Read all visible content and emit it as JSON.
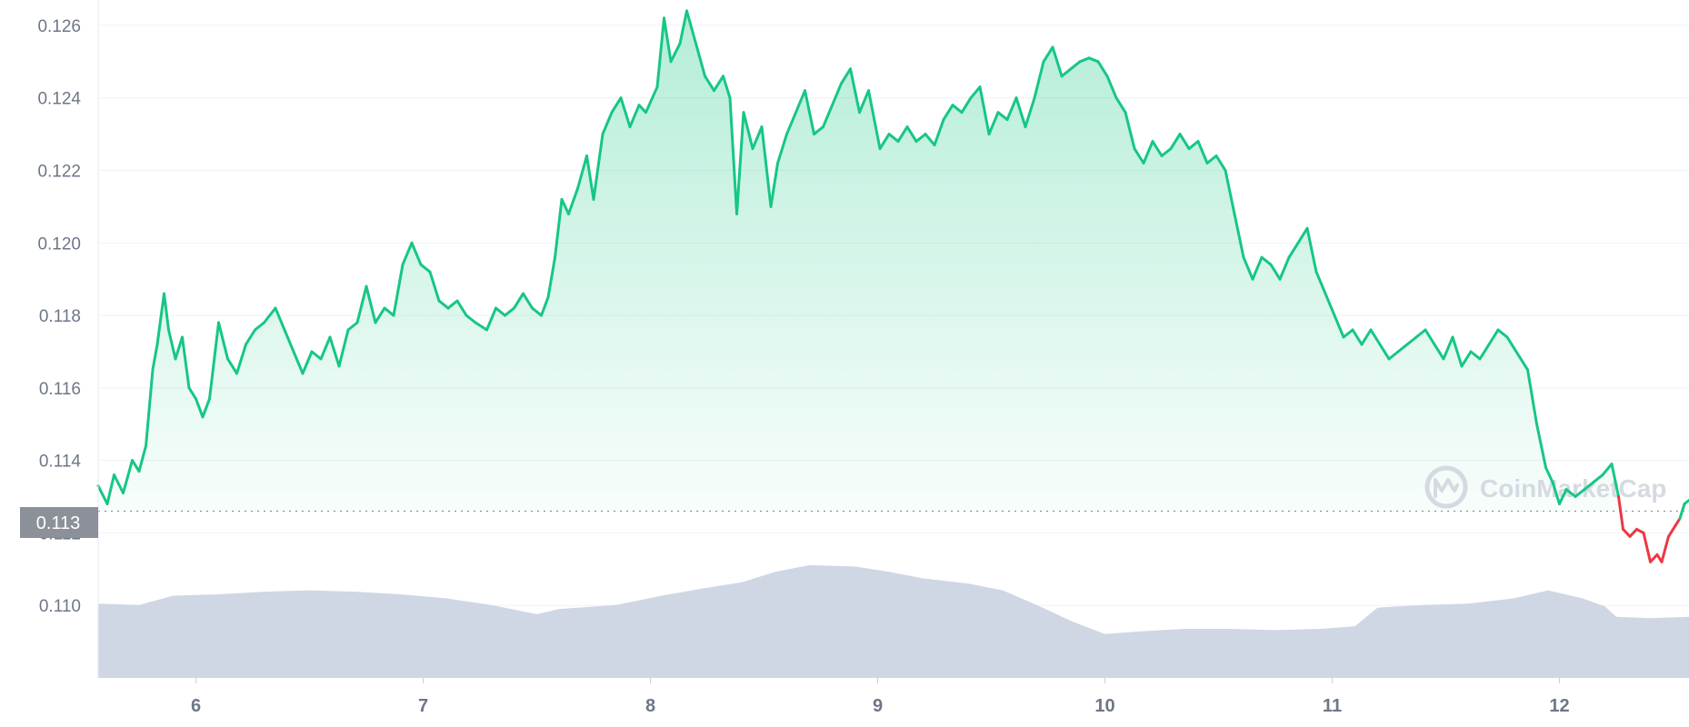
{
  "chart_data": {
    "type": "line",
    "title": "",
    "xlabel": "",
    "ylabel": "",
    "x_ticks": [
      "6",
      "7",
      "8",
      "9",
      "10",
      "11",
      "12"
    ],
    "y_ticks": [
      "0.126",
      "0.124",
      "0.122",
      "0.120",
      "0.118",
      "0.116",
      "0.114",
      "0.112",
      "0.110"
    ],
    "xlim": [
      5.57,
      12.57
    ],
    "ylim": [
      0.108,
      0.1267
    ],
    "grid": true,
    "reference_value": 0.1126,
    "current_label": "0.113",
    "watermark": "CoinMarketCap",
    "colors": {
      "up_line": "#16c784",
      "up_fill": "#16c784",
      "down_line": "#ea3943",
      "volume": "#cfd6e4",
      "label_bg": "#8c9199",
      "grid": "#eff2f5"
    },
    "series": [
      {
        "values": [
          [
            5.57,
            0.1133
          ],
          [
            5.61,
            0.1128
          ],
          [
            5.64,
            0.1136
          ],
          [
            5.68,
            0.1131
          ],
          [
            5.72,
            0.114
          ],
          [
            5.75,
            0.1137
          ],
          [
            5.78,
            0.1144
          ],
          [
            5.81,
            0.1165
          ],
          [
            5.83,
            0.1172
          ],
          [
            5.86,
            0.1186
          ],
          [
            5.88,
            0.1176
          ],
          [
            5.91,
            0.1168
          ],
          [
            5.94,
            0.1174
          ],
          [
            5.97,
            0.116
          ],
          [
            6.0,
            0.1157
          ],
          [
            6.03,
            0.1152
          ],
          [
            6.06,
            0.1157
          ],
          [
            6.1,
            0.1178
          ],
          [
            6.14,
            0.1168
          ],
          [
            6.18,
            0.1164
          ],
          [
            6.22,
            0.1172
          ],
          [
            6.26,
            0.1176
          ],
          [
            6.3,
            0.1178
          ],
          [
            6.35,
            0.1182
          ],
          [
            6.39,
            0.1176
          ],
          [
            6.43,
            0.117
          ],
          [
            6.47,
            0.1164
          ],
          [
            6.51,
            0.117
          ],
          [
            6.55,
            0.1168
          ],
          [
            6.59,
            0.1174
          ],
          [
            6.63,
            0.1166
          ],
          [
            6.67,
            0.1176
          ],
          [
            6.71,
            0.1178
          ],
          [
            6.75,
            0.1188
          ],
          [
            6.79,
            0.1178
          ],
          [
            6.83,
            0.1182
          ],
          [
            6.87,
            0.118
          ],
          [
            6.91,
            0.1194
          ],
          [
            6.95,
            0.12
          ],
          [
            6.99,
            0.1194
          ],
          [
            7.03,
            0.1192
          ],
          [
            7.07,
            0.1184
          ],
          [
            7.11,
            0.1182
          ],
          [
            7.15,
            0.1184
          ],
          [
            7.19,
            0.118
          ],
          [
            7.23,
            0.1178
          ],
          [
            7.28,
            0.1176
          ],
          [
            7.32,
            0.1182
          ],
          [
            7.36,
            0.118
          ],
          [
            7.4,
            0.1182
          ],
          [
            7.44,
            0.1186
          ],
          [
            7.48,
            0.1182
          ],
          [
            7.52,
            0.118
          ],
          [
            7.55,
            0.1185
          ],
          [
            7.58,
            0.1196
          ],
          [
            7.61,
            0.1212
          ],
          [
            7.64,
            0.1208
          ],
          [
            7.68,
            0.1215
          ],
          [
            7.72,
            0.1224
          ],
          [
            7.75,
            0.1212
          ],
          [
            7.79,
            0.123
          ],
          [
            7.83,
            0.1236
          ],
          [
            7.87,
            0.124
          ],
          [
            7.91,
            0.1232
          ],
          [
            7.95,
            0.1238
          ],
          [
            7.98,
            0.1236
          ],
          [
            8.03,
            0.1243
          ],
          [
            8.06,
            0.1262
          ],
          [
            8.09,
            0.125
          ],
          [
            8.13,
            0.1255
          ],
          [
            8.16,
            0.1264
          ],
          [
            8.2,
            0.1255
          ],
          [
            8.24,
            0.1246
          ],
          [
            8.28,
            0.1242
          ],
          [
            8.32,
            0.1246
          ],
          [
            8.35,
            0.124
          ],
          [
            8.38,
            0.1208
          ],
          [
            8.41,
            0.1236
          ],
          [
            8.45,
            0.1226
          ],
          [
            8.49,
            0.1232
          ],
          [
            8.53,
            0.121
          ],
          [
            8.56,
            0.1222
          ],
          [
            8.6,
            0.123
          ],
          [
            8.64,
            0.1236
          ],
          [
            8.68,
            0.1242
          ],
          [
            8.72,
            0.123
          ],
          [
            8.76,
            0.1232
          ],
          [
            8.8,
            0.1238
          ],
          [
            8.84,
            0.1244
          ],
          [
            8.88,
            0.1248
          ],
          [
            8.92,
            0.1236
          ],
          [
            8.96,
            0.1242
          ],
          [
            9.01,
            0.1226
          ],
          [
            9.05,
            0.123
          ],
          [
            9.09,
            0.1228
          ],
          [
            9.13,
            0.1232
          ],
          [
            9.17,
            0.1228
          ],
          [
            9.21,
            0.123
          ],
          [
            9.25,
            0.1227
          ],
          [
            9.29,
            0.1234
          ],
          [
            9.33,
            0.1238
          ],
          [
            9.37,
            0.1236
          ],
          [
            9.41,
            0.124
          ],
          [
            9.45,
            0.1243
          ],
          [
            9.49,
            0.123
          ],
          [
            9.53,
            0.1236
          ],
          [
            9.57,
            0.1234
          ],
          [
            9.61,
            0.124
          ],
          [
            9.65,
            0.1232
          ],
          [
            9.69,
            0.124
          ],
          [
            9.73,
            0.125
          ],
          [
            9.77,
            0.1254
          ],
          [
            9.81,
            0.1246
          ],
          [
            9.85,
            0.1248
          ],
          [
            9.89,
            0.125
          ],
          [
            9.93,
            0.1251
          ],
          [
            9.97,
            0.125
          ],
          [
            10.01,
            0.1246
          ],
          [
            10.05,
            0.124
          ],
          [
            10.09,
            0.1236
          ],
          [
            10.13,
            0.1226
          ],
          [
            10.17,
            0.1222
          ],
          [
            10.21,
            0.1228
          ],
          [
            10.25,
            0.1224
          ],
          [
            10.29,
            0.1226
          ],
          [
            10.33,
            0.123
          ],
          [
            10.37,
            0.1226
          ],
          [
            10.41,
            0.1228
          ],
          [
            10.45,
            0.1222
          ],
          [
            10.49,
            0.1224
          ],
          [
            10.53,
            0.122
          ],
          [
            10.57,
            0.1208
          ],
          [
            10.61,
            0.1196
          ],
          [
            10.65,
            0.119
          ],
          [
            10.69,
            0.1196
          ],
          [
            10.73,
            0.1194
          ],
          [
            10.77,
            0.119
          ],
          [
            10.81,
            0.1196
          ],
          [
            10.85,
            0.12
          ],
          [
            10.89,
            0.1204
          ],
          [
            10.93,
            0.1192
          ],
          [
            10.97,
            0.1186
          ],
          [
            11.01,
            0.118
          ],
          [
            11.05,
            0.1174
          ],
          [
            11.09,
            0.1176
          ],
          [
            11.13,
            0.1172
          ],
          [
            11.17,
            0.1176
          ],
          [
            11.21,
            0.1172
          ],
          [
            11.25,
            0.1168
          ],
          [
            11.29,
            0.117
          ],
          [
            11.33,
            0.1172
          ],
          [
            11.37,
            0.1174
          ],
          [
            11.41,
            0.1176
          ],
          [
            11.45,
            0.1172
          ],
          [
            11.49,
            0.1168
          ],
          [
            11.53,
            0.1174
          ],
          [
            11.57,
            0.1166
          ],
          [
            11.61,
            0.117
          ],
          [
            11.65,
            0.1168
          ],
          [
            11.69,
            0.1172
          ],
          [
            11.73,
            0.1176
          ],
          [
            11.77,
            0.1174
          ],
          [
            11.81,
            0.117
          ],
          [
            11.86,
            0.1165
          ],
          [
            11.9,
            0.115
          ],
          [
            11.94,
            0.1138
          ],
          [
            11.97,
            0.1134
          ],
          [
            12.0,
            0.1128
          ],
          [
            12.03,
            0.1132
          ],
          [
            12.07,
            0.113
          ],
          [
            12.11,
            0.1132
          ],
          [
            12.15,
            0.1134
          ],
          [
            12.19,
            0.1136
          ],
          [
            12.23,
            0.1139
          ],
          [
            12.26,
            0.113
          ],
          [
            12.28,
            0.1121
          ],
          [
            12.31,
            0.1119
          ],
          [
            12.34,
            0.1121
          ],
          [
            12.37,
            0.112
          ],
          [
            12.4,
            0.1112
          ],
          [
            12.43,
            0.1114
          ],
          [
            12.45,
            0.1112
          ],
          [
            12.48,
            0.1119
          ],
          [
            12.51,
            0.1122
          ],
          [
            12.53,
            0.1124
          ],
          [
            12.55,
            0.1128
          ],
          [
            12.57,
            0.1129
          ]
        ]
      }
    ],
    "volume": {
      "values": [
        [
          5.57,
          0.56
        ],
        [
          5.75,
          0.55
        ],
        [
          5.9,
          0.62
        ],
        [
          6.1,
          0.63
        ],
        [
          6.3,
          0.65
        ],
        [
          6.5,
          0.66
        ],
        [
          6.7,
          0.65
        ],
        [
          6.9,
          0.63
        ],
        [
          7.1,
          0.6
        ],
        [
          7.3,
          0.55
        ],
        [
          7.5,
          0.48
        ],
        [
          7.6,
          0.52
        ],
        [
          7.85,
          0.55
        ],
        [
          8.05,
          0.62
        ],
        [
          8.25,
          0.68
        ],
        [
          8.4,
          0.72
        ],
        [
          8.55,
          0.8
        ],
        [
          8.7,
          0.85
        ],
        [
          8.9,
          0.84
        ],
        [
          9.05,
          0.8
        ],
        [
          9.2,
          0.75
        ],
        [
          9.4,
          0.71
        ],
        [
          9.55,
          0.66
        ],
        [
          9.7,
          0.55
        ],
        [
          9.85,
          0.43
        ],
        [
          10.0,
          0.33
        ],
        [
          10.15,
          0.35
        ],
        [
          10.35,
          0.37
        ],
        [
          10.55,
          0.37
        ],
        [
          10.75,
          0.36
        ],
        [
          10.95,
          0.37
        ],
        [
          11.1,
          0.39
        ],
        [
          11.2,
          0.53
        ],
        [
          11.4,
          0.55
        ],
        [
          11.6,
          0.56
        ],
        [
          11.8,
          0.6
        ],
        [
          11.95,
          0.66
        ],
        [
          12.1,
          0.6
        ],
        [
          12.2,
          0.54
        ],
        [
          12.25,
          0.46
        ],
        [
          12.4,
          0.45
        ],
        [
          12.57,
          0.46
        ]
      ]
    }
  }
}
